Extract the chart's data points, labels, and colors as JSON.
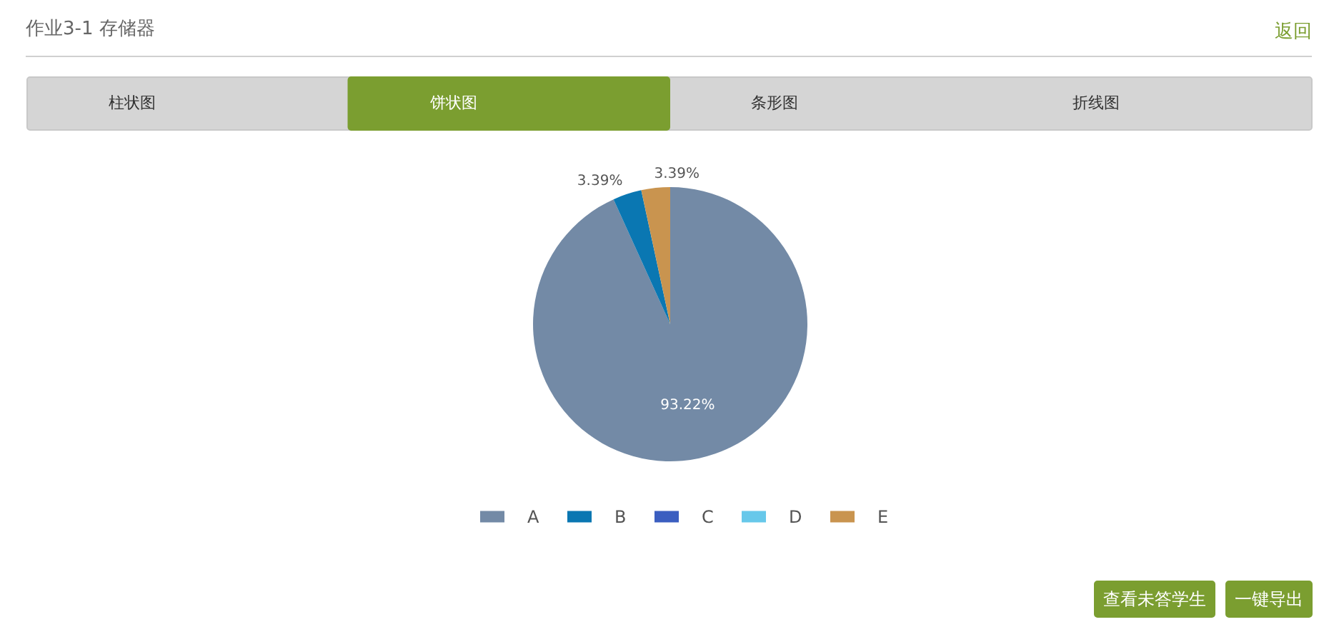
{
  "chart_data": {
    "type": "pie",
    "title": "作业3-1 存储器",
    "categories": [
      "A",
      "B",
      "C",
      "D",
      "E"
    ],
    "values": [
      93.22,
      3.39,
      0,
      0,
      3.39
    ],
    "colors": [
      "#738aa6",
      "#0a77b2",
      "#3b5ec0",
      "#67c8ea",
      "#c9944f"
    ],
    "value_labels": [
      "93.22%",
      "3.39%",
      null,
      null,
      "3.39%"
    ],
    "legend": "bottom",
    "annotations": [
      "返回",
      "柱状图",
      "饼状图",
      "条形图",
      "折线图",
      "查看未答学生",
      "一键导出"
    ]
  }
}
